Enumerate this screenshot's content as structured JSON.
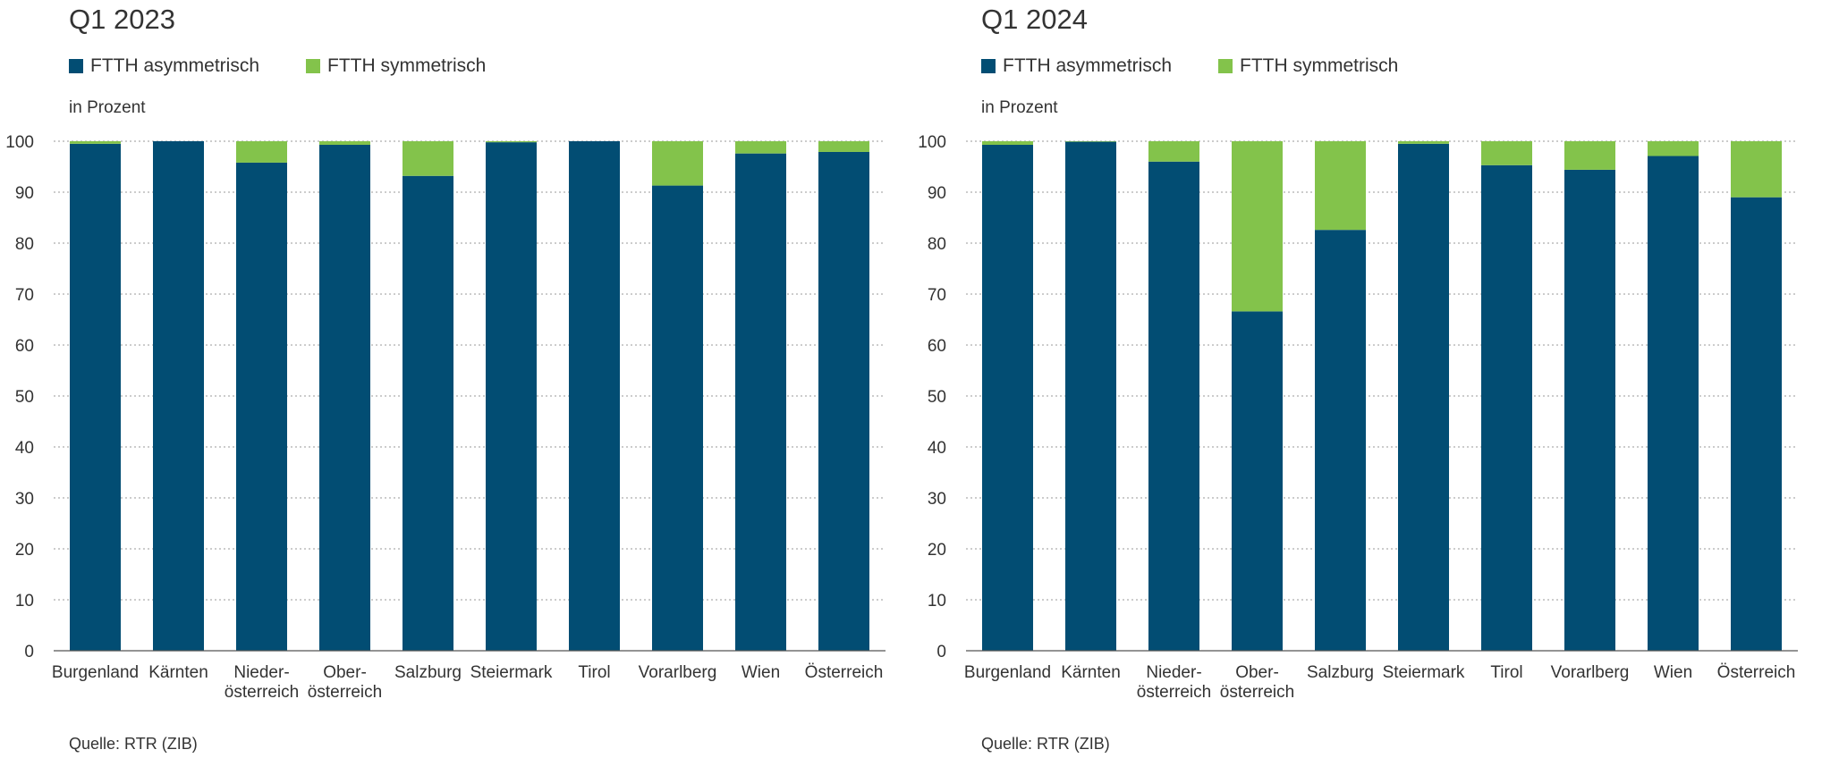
{
  "colors": {
    "asym": "#024d73",
    "sym": "#83c34b",
    "grid": "#9a9a9a",
    "axis": "#555555"
  },
  "chart_data": [
    {
      "type": "bar",
      "stacked": true,
      "title": "Q1 2023",
      "ylabel": "in Prozent",
      "source": "Quelle: RTR (ZIB)",
      "ylim": [
        0,
        100
      ],
      "yticks": [
        "0",
        "10",
        "20",
        "30",
        "40",
        "50",
        "60",
        "70",
        "80",
        "90",
        "100"
      ],
      "grid": "horizontal-dotted",
      "legend_position": "top-left",
      "categories": [
        [
          "Burgenland"
        ],
        [
          "Kärnten"
        ],
        [
          "Nieder-",
          "österreich"
        ],
        [
          "Ober-",
          "österreich"
        ],
        [
          "Salzburg"
        ],
        [
          "Steiermark"
        ],
        [
          "Tirol"
        ],
        [
          "Vorarlberg"
        ],
        [
          "Wien"
        ],
        [
          "Österreich"
        ]
      ],
      "series": [
        {
          "name": "FTTH asymmetrisch",
          "values": [
            99.5,
            100,
            95.8,
            99.3,
            93.2,
            99.8,
            100,
            91.3,
            97.6,
            97.9
          ]
        },
        {
          "name": "FTTH symmetrisch",
          "values": [
            0.5,
            0,
            4.2,
            0.7,
            6.8,
            0.2,
            0,
            8.7,
            2.4,
            2.1
          ]
        }
      ]
    },
    {
      "type": "bar",
      "stacked": true,
      "title": "Q1 2024",
      "ylabel": "in Prozent",
      "source": "Quelle: RTR (ZIB)",
      "ylim": [
        0,
        100
      ],
      "yticks": [
        "0",
        "10",
        "20",
        "30",
        "40",
        "50",
        "60",
        "70",
        "80",
        "90",
        "100"
      ],
      "grid": "horizontal-dotted",
      "legend_position": "top-left",
      "categories": [
        [
          "Burgenland"
        ],
        [
          "Kärnten"
        ],
        [
          "Nieder-",
          "österreich"
        ],
        [
          "Ober-",
          "österreich"
        ],
        [
          "Salzburg"
        ],
        [
          "Steiermark"
        ],
        [
          "Tirol"
        ],
        [
          "Vorarlberg"
        ],
        [
          "Wien"
        ],
        [
          "Österreich"
        ]
      ],
      "series": [
        {
          "name": "FTTH asymmetrisch",
          "values": [
            99.3,
            99.9,
            96.0,
            66.6,
            82.6,
            99.5,
            95.3,
            94.4,
            97.1,
            89.0
          ]
        },
        {
          "name": "FTTH symmetrisch",
          "values": [
            0.7,
            0.1,
            4.0,
            33.4,
            17.4,
            0.5,
            4.7,
            5.6,
            2.9,
            11.0
          ]
        }
      ]
    }
  ]
}
